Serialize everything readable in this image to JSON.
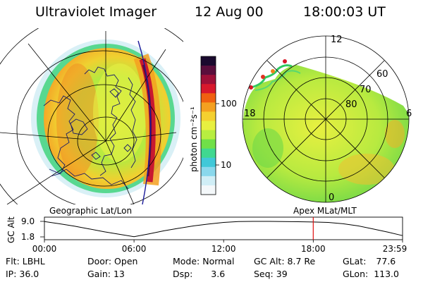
{
  "header": {
    "instrument": "Ultraviolet Imager",
    "date": "12 Aug 00",
    "time": "18:00:03 UT"
  },
  "colorbar": {
    "unit": "photon cm⁻²s⁻¹",
    "tick_labels": [
      "100",
      "10"
    ],
    "colors": [
      "#1a0a2e",
      "#5a0e3c",
      "#9e1038",
      "#d8182c",
      "#f06010",
      "#f4a020",
      "#f4d030",
      "#e8f040",
      "#b8ee40",
      "#70e048",
      "#40d890",
      "#40c8d8",
      "#8ad8ec",
      "#d0eef6",
      "#f4f8fa"
    ]
  },
  "left_panel": {
    "caption": "Geographic Lat/Lon"
  },
  "right_panel": {
    "caption": "Apex MLat/MLT",
    "mlt_labels": [
      "12",
      "18",
      "6",
      "0"
    ],
    "lat_labels": [
      "60",
      "70",
      "80"
    ]
  },
  "timeline": {
    "axis_label": "GC Alt",
    "y_ticks": [
      "9.0",
      "1.8"
    ],
    "x_ticks": [
      "00:00",
      "06:00",
      "12:00",
      "18:00",
      "23:59"
    ],
    "curve": {
      "times_h": [
        0,
        1,
        2,
        3,
        4,
        5,
        6,
        7,
        8,
        9,
        10,
        11,
        12,
        13,
        14,
        15,
        16,
        17,
        18,
        19,
        20,
        21,
        22,
        23,
        23.98
      ],
      "altitude_re": [
        8.9,
        7.9,
        6.8,
        5.5,
        4.2,
        3.0,
        1.9,
        3.2,
        4.6,
        5.8,
        6.9,
        7.8,
        8.5,
        8.9,
        9.0,
        9.0,
        8.95,
        8.85,
        8.7,
        8.5,
        7.9,
        6.9,
        5.5,
        4.0,
        2.4
      ]
    },
    "current_time_h": 18.0
  },
  "info": {
    "flt_label": "Flt:",
    "flt_value": "LBHL",
    "ip_label": "IP:",
    "ip_value": "36.0",
    "door_label": "Door:",
    "door_value": "Open",
    "gain_label": "Gain:",
    "gain_value": "13",
    "mode_label": "Mode:",
    "mode_value": "Normal",
    "dsp_label": "Dsp:",
    "dsp_value": "3.6",
    "gcalt_label": "GC Alt:",
    "gcalt_value": "8.7 Re",
    "seq_label": "Seq:",
    "seq_value": "39",
    "glat_label": "GLat:",
    "glat_value": "77.6",
    "glon_label": "GLon:",
    "glon_value": "113.0"
  }
}
